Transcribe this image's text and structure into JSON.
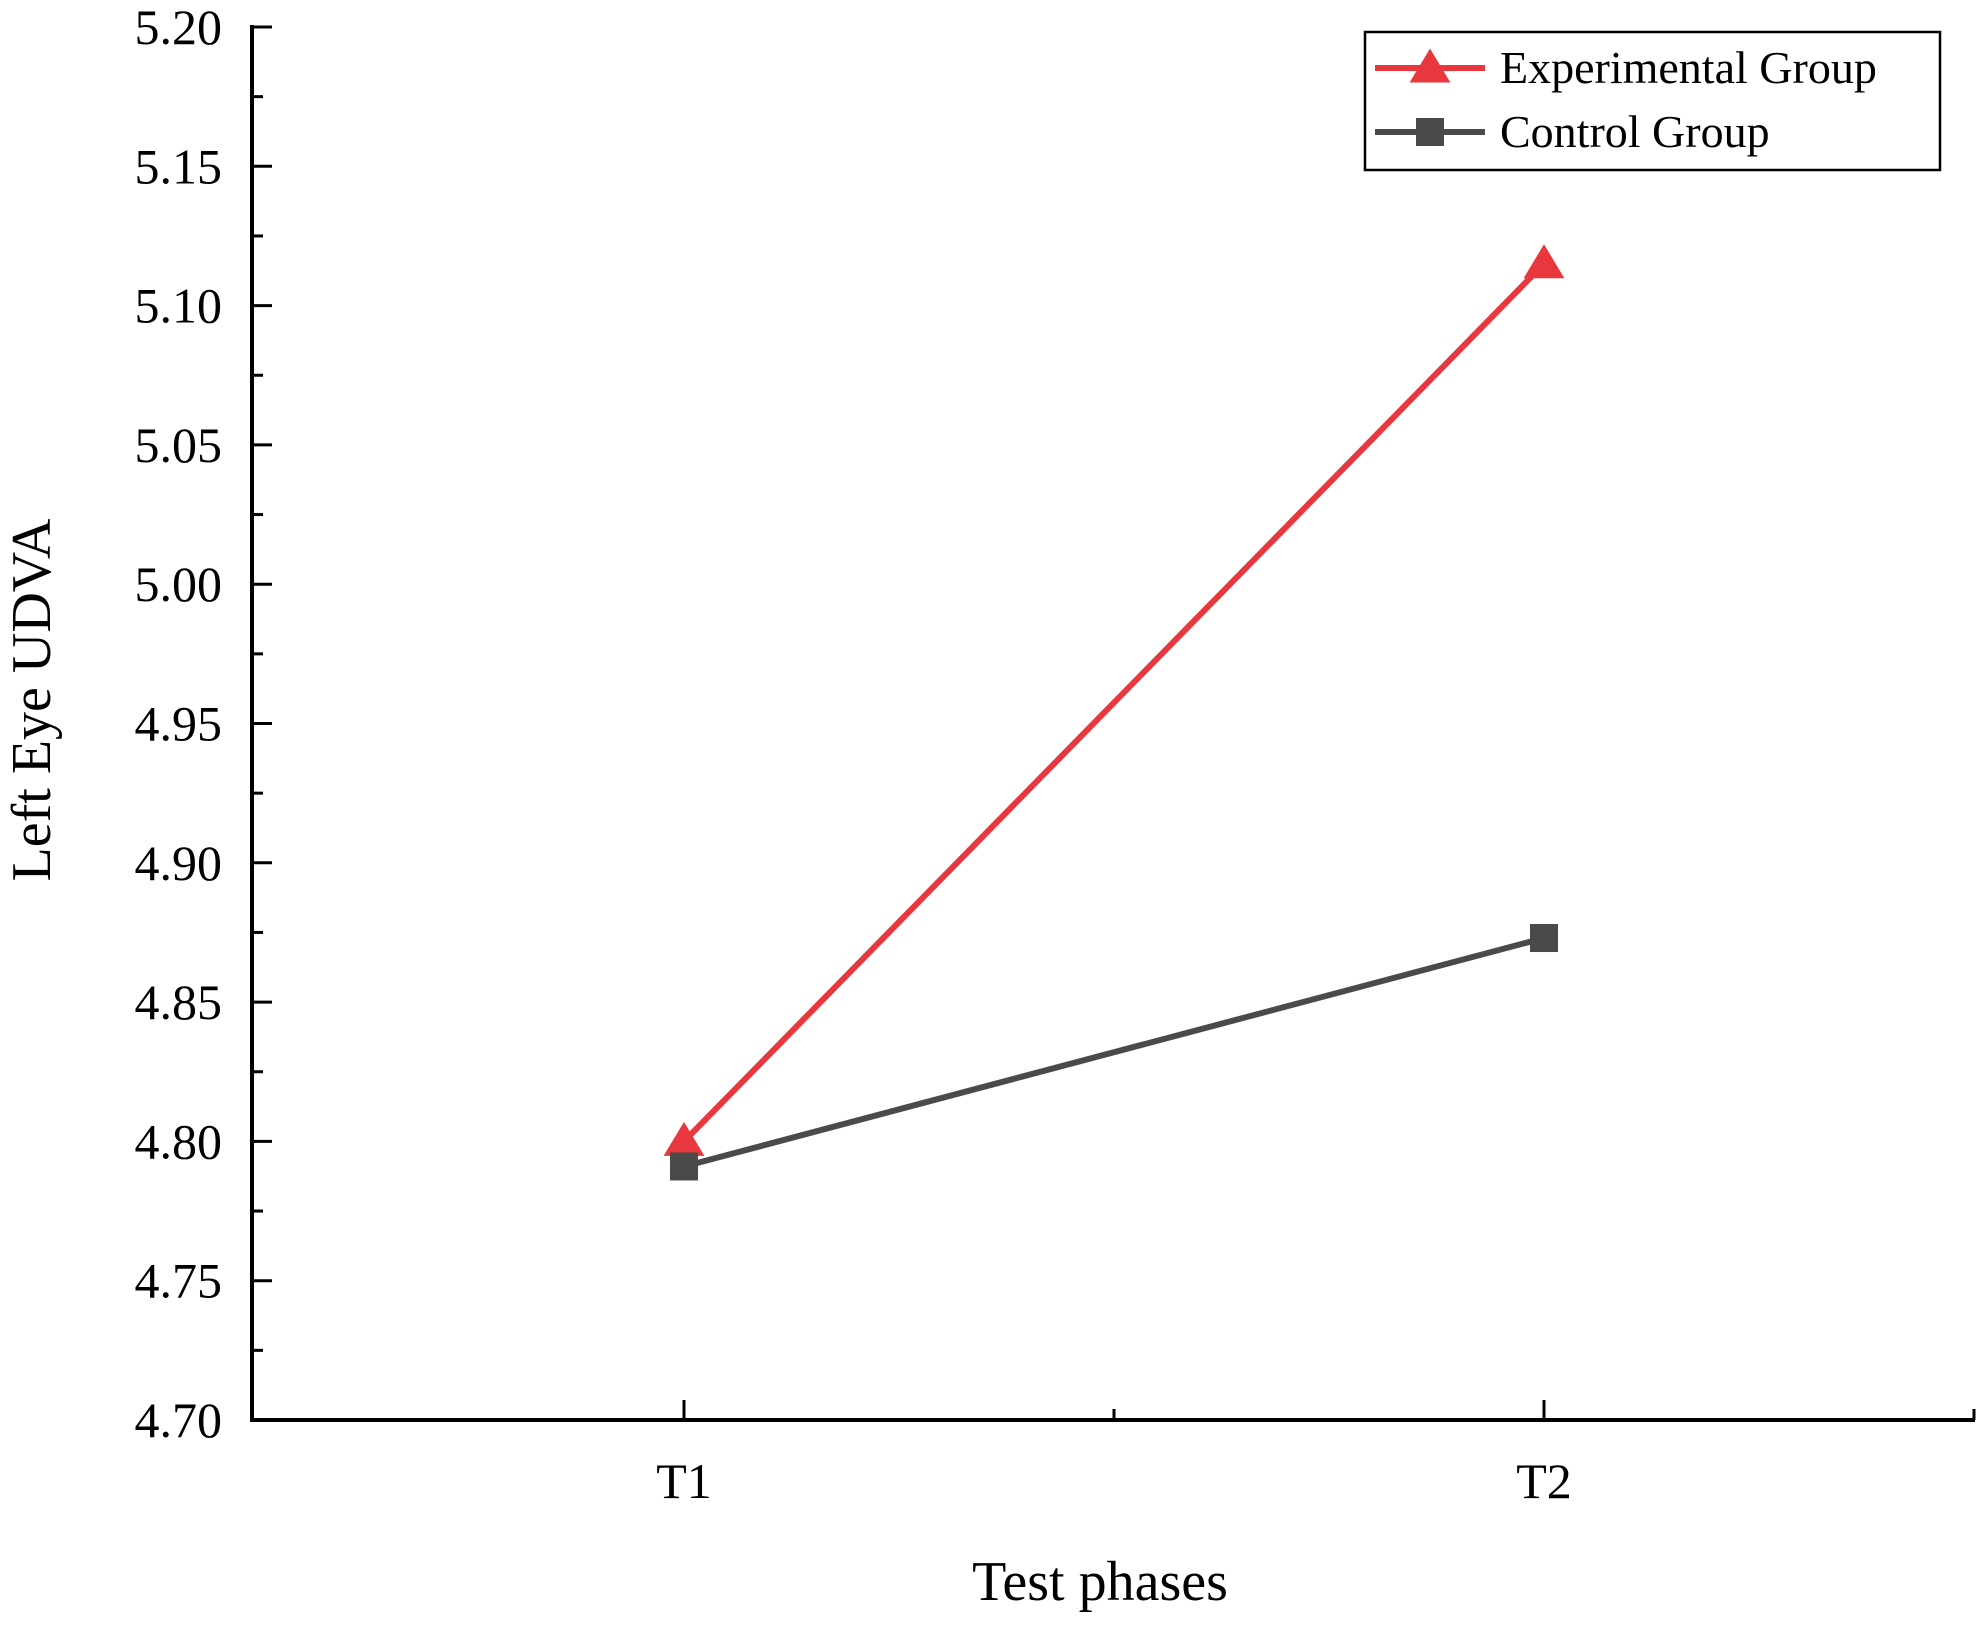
{
  "chart_data": {
    "type": "line",
    "title": "",
    "xlabel": "Test phases",
    "ylabel": "Left Eye UDVA",
    "categories": [
      "T1",
      "T2"
    ],
    "ylim": [
      4.7,
      5.2
    ],
    "y_ticks": [
      "4.70",
      "4.75",
      "4.80",
      "4.85",
      "4.90",
      "4.95",
      "5.00",
      "5.05",
      "5.10",
      "5.15",
      "5.20"
    ],
    "grid": false,
    "legend_position": "top-right",
    "series": [
      {
        "name": "Experimental Group",
        "values": [
          4.8,
          5.115
        ],
        "color": "#e8383d",
        "marker": "triangle"
      },
      {
        "name": "Control Group",
        "values": [
          4.791,
          4.873
        ],
        "color": "#4a4a4a",
        "marker": "square"
      }
    ]
  }
}
